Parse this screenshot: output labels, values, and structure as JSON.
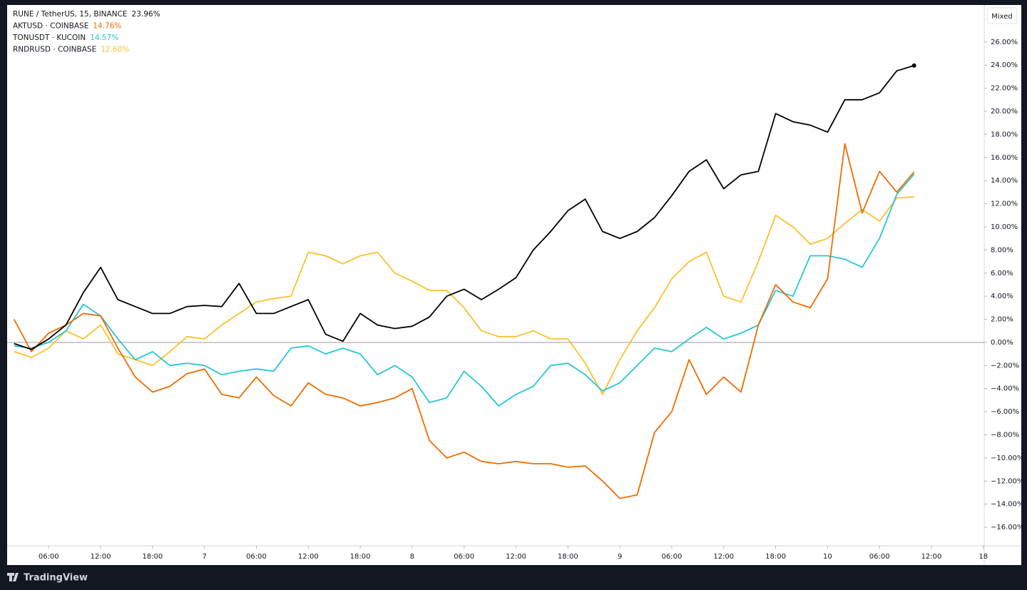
{
  "chart_data": {
    "type": "line",
    "brand": "TradingView",
    "mode_button": "Mixed",
    "xlim": [
      1.2,
      114.1
    ],
    "ylim": [
      -17.6,
      29.2
    ],
    "zero_line": true,
    "xticks": [
      {
        "value": 6,
        "label": "06:00"
      },
      {
        "value": 12,
        "label": "12:00"
      },
      {
        "value": 18,
        "label": "18:00"
      },
      {
        "value": 24,
        "label": "7"
      },
      {
        "value": 30,
        "label": "06:00"
      },
      {
        "value": 36,
        "label": "12:00"
      },
      {
        "value": 42,
        "label": "18:00"
      },
      {
        "value": 48,
        "label": "8"
      },
      {
        "value": 54,
        "label": "06:00"
      },
      {
        "value": 60,
        "label": "12:00"
      },
      {
        "value": 66,
        "label": "18:00"
      },
      {
        "value": 72,
        "label": "9"
      },
      {
        "value": 78,
        "label": "06:00"
      },
      {
        "value": 84,
        "label": "12:00"
      },
      {
        "value": 90,
        "label": "18:00"
      },
      {
        "value": 96,
        "label": "10"
      },
      {
        "value": 102,
        "label": "06:00"
      },
      {
        "value": 108,
        "label": "12:00"
      },
      {
        "value": 114,
        "label": "18"
      }
    ],
    "yticks": [
      {
        "value": 26,
        "label": "26.00%"
      },
      {
        "value": 24,
        "label": "24.00%"
      },
      {
        "value": 22,
        "label": "22.00%"
      },
      {
        "value": 20,
        "label": "20.00%"
      },
      {
        "value": 18,
        "label": "18.00%"
      },
      {
        "value": 16,
        "label": "16.00%"
      },
      {
        "value": 14,
        "label": "14.00%"
      },
      {
        "value": 12,
        "label": "12.00%"
      },
      {
        "value": 10,
        "label": "10.00%"
      },
      {
        "value": 8,
        "label": "8.00%"
      },
      {
        "value": 6,
        "label": "6.00%"
      },
      {
        "value": 4,
        "label": "4.00%"
      },
      {
        "value": 2,
        "label": "2.00%"
      },
      {
        "value": 0,
        "label": "0.00%"
      },
      {
        "value": -2,
        "label": "−2.00%"
      },
      {
        "value": -4,
        "label": "−4.00%"
      },
      {
        "value": -6,
        "label": "−6.00%"
      },
      {
        "value": -8,
        "label": "−8.00%"
      },
      {
        "value": -10,
        "label": "−10.00%"
      },
      {
        "value": -12,
        "label": "−12.00%"
      },
      {
        "value": -14,
        "label": "−14.00%"
      },
      {
        "value": -16,
        "label": "−16.00%"
      }
    ],
    "x": [
      2,
      4,
      6,
      8,
      10,
      12,
      14,
      16,
      18,
      20,
      22,
      24,
      26,
      28,
      30,
      32,
      34,
      36,
      38,
      40,
      42,
      44,
      46,
      48,
      50,
      52,
      54,
      56,
      58,
      60,
      62,
      64,
      66,
      68,
      70,
      72,
      74,
      76,
      78,
      80,
      82,
      84,
      86,
      88,
      90,
      92,
      94,
      96,
      98,
      100,
      102,
      104,
      106
    ],
    "series": [
      {
        "name": "RUNE / TetherUS, 15, BINANCE",
        "color": "#000000",
        "last_value": 23.96,
        "last_label": "23.96%",
        "values": [
          -0.1,
          -0.6,
          0.3,
          1.5,
          4.3,
          6.5,
          3.7,
          3.1,
          2.5,
          2.5,
          3.1,
          3.2,
          3.1,
          5.1,
          2.5,
          2.5,
          3.1,
          3.7,
          0.7,
          0.1,
          2.5,
          1.5,
          1.2,
          1.4,
          2.2,
          4.0,
          4.6,
          3.7,
          4.6,
          5.6,
          8.0,
          9.6,
          11.4,
          12.4,
          9.6,
          9.0,
          9.6,
          10.8,
          12.7,
          14.8,
          15.8,
          13.3,
          14.5,
          14.8,
          19.8,
          19.1,
          18.8,
          18.2,
          21.0,
          21.0,
          21.6,
          23.5,
          23.96
        ]
      },
      {
        "name": "AKTUSD · COINBASE",
        "color": "#ef6c00",
        "last_value": 14.76,
        "last_label": "14.76%",
        "values": [
          2.0,
          -0.8,
          0.8,
          1.5,
          2.5,
          2.3,
          -0.5,
          -3.0,
          -4.3,
          -3.8,
          -2.7,
          -2.3,
          -4.5,
          -4.8,
          -3.0,
          -4.6,
          -5.5,
          -3.5,
          -4.5,
          -4.8,
          -5.5,
          -5.2,
          -4.8,
          -4.0,
          -8.5,
          -10.0,
          -9.5,
          -10.3,
          -10.5,
          -10.3,
          -10.5,
          -10.5,
          -10.8,
          -10.7,
          -12.0,
          -13.5,
          -13.2,
          -7.8,
          -6.0,
          -1.5,
          -4.5,
          -3.0,
          -4.3,
          1.5,
          5.0,
          3.5,
          3.0,
          5.5,
          17.2,
          11.2,
          14.8,
          13.0,
          14.76
        ]
      },
      {
        "name": "TONUSDT · KUCOIN",
        "color": "#26c6da",
        "last_value": 14.57,
        "last_label": "14.57%",
        "values": [
          -0.3,
          -0.5,
          0.0,
          1.0,
          3.3,
          2.3,
          0.3,
          -1.5,
          -0.8,
          -2.0,
          -1.8,
          -2.0,
          -2.8,
          -2.5,
          -2.3,
          -2.5,
          -0.5,
          -0.3,
          -1.0,
          -0.5,
          -1.0,
          -2.8,
          -2.0,
          -3.0,
          -5.2,
          -4.8,
          -2.5,
          -3.8,
          -5.5,
          -4.5,
          -3.8,
          -2.0,
          -1.8,
          -2.8,
          -4.2,
          -3.5,
          -2.0,
          -0.5,
          -0.8,
          0.3,
          1.3,
          0.3,
          0.8,
          1.5,
          4.5,
          4.0,
          7.5,
          7.5,
          7.2,
          6.5,
          9.0,
          12.8,
          14.57
        ]
      },
      {
        "name": "RNDRUSD · COINBASE",
        "color": "#fbc02d",
        "last_value": 12.6,
        "last_label": "12.60%",
        "values": [
          -0.8,
          -1.3,
          -0.5,
          1.0,
          0.3,
          1.5,
          -1.0,
          -1.5,
          -2.0,
          -0.8,
          0.5,
          0.3,
          1.5,
          2.5,
          3.5,
          3.8,
          4.0,
          7.8,
          7.5,
          6.8,
          7.5,
          7.8,
          6.0,
          5.3,
          4.5,
          4.5,
          3.0,
          1.0,
          0.5,
          0.5,
          1.0,
          0.3,
          0.3,
          -1.8,
          -4.5,
          -1.5,
          1.0,
          3.0,
          5.5,
          7.0,
          7.8,
          4.0,
          3.5,
          7.0,
          11.0,
          10.0,
          8.5,
          9.0,
          10.3,
          11.5,
          10.5,
          12.5,
          12.6
        ]
      }
    ]
  }
}
